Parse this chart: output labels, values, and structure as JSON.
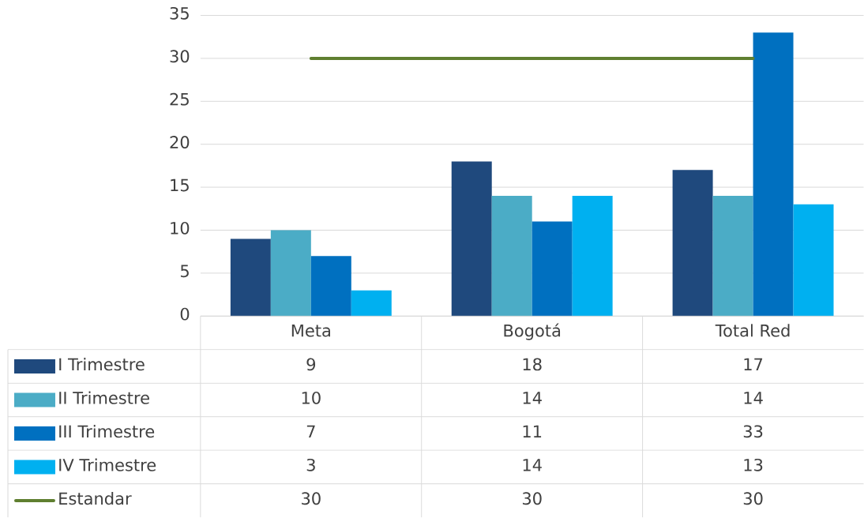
{
  "chart_data": {
    "type": "bar",
    "categories": [
      "Meta",
      "Bogotá",
      "Total Red"
    ],
    "series": [
      {
        "name": "I Trimestre",
        "color": "#1f497d",
        "values": [
          9,
          18,
          17
        ]
      },
      {
        "name": "II Trimestre",
        "color": "#4bacc6",
        "values": [
          10,
          14,
          14
        ]
      },
      {
        "name": "III Trimestre",
        "color": "#0070c0",
        "values": [
          7,
          11,
          33
        ]
      },
      {
        "name": "IV Trimestre",
        "color": "#00b0f0",
        "values": [
          3,
          14,
          13
        ]
      },
      {
        "name": "Estandar",
        "type": "line",
        "color": "#5f7f30",
        "values": [
          30,
          30,
          30
        ]
      }
    ],
    "ylim": [
      0,
      35
    ],
    "yticks": [
      0,
      5,
      10,
      15,
      20,
      25,
      30,
      35
    ],
    "grid": "y",
    "legend": "bottom left",
    "data_labels": true,
    "marker": "none",
    "line_style": "solid"
  }
}
